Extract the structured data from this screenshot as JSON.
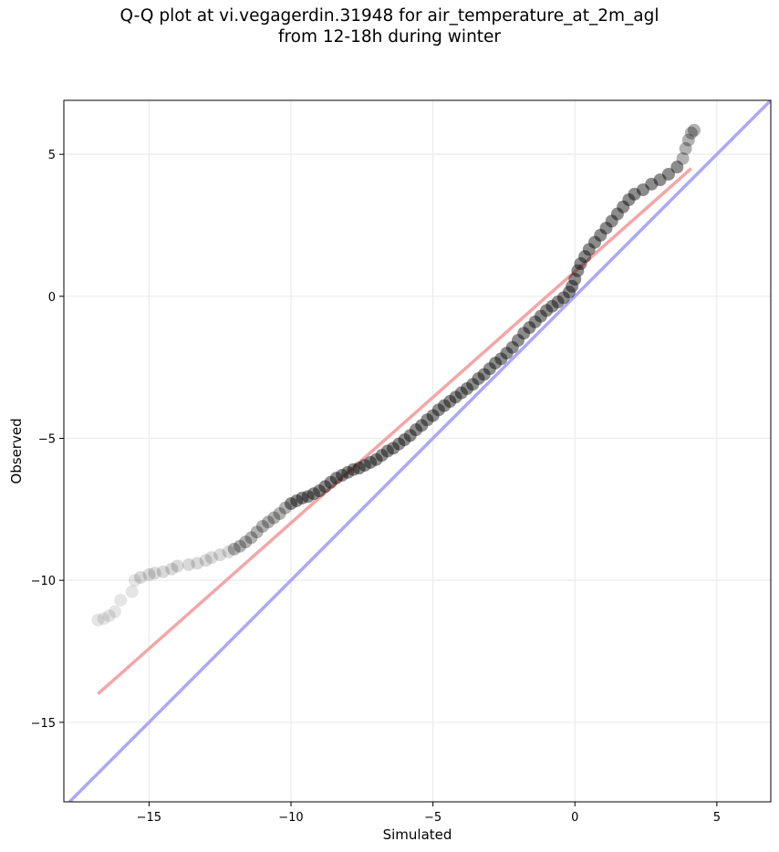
{
  "chart_data": {
    "type": "scatter",
    "title": "Q-Q plot at vi.vegagerdin.31948 for air_temperature_at_2m_agl",
    "subtitle": "from 12-18h during winter",
    "xlabel": "Simulated",
    "ylabel": "Observed",
    "xlim": [
      -18,
      6.9
    ],
    "ylim": [
      -17.8,
      6.9
    ],
    "xticks": [
      -15,
      -10,
      -5,
      0,
      5
    ],
    "yticks": [
      -15,
      -10,
      -5,
      0,
      5
    ],
    "xtick_labels": [
      "−15",
      "−10",
      "−5",
      "0",
      "5"
    ],
    "ytick_labels": [
      "−15",
      "−10",
      "−5",
      "0",
      "5"
    ],
    "grid": true,
    "colors": {
      "points": "#000000",
      "fit_line": "#f4a6a6",
      "identity_line": "#aaaaf4"
    },
    "series": [
      {
        "values": [
          {
            "x": -16.8,
            "y": -11.4
          },
          {
            "x": -16.6,
            "y": -11.35
          },
          {
            "x": -16.4,
            "y": -11.25
          },
          {
            "x": -16.2,
            "y": -11.1
          },
          {
            "x": -16.0,
            "y": -10.7
          },
          {
            "x": -15.6,
            "y": -10.4
          },
          {
            "x": -15.5,
            "y": -10.0
          },
          {
            "x": -15.3,
            "y": -9.9
          },
          {
            "x": -15.0,
            "y": -9.8
          },
          {
            "x": -14.8,
            "y": -9.75
          },
          {
            "x": -14.5,
            "y": -9.7
          },
          {
            "x": -14.2,
            "y": -9.6
          },
          {
            "x": -14.0,
            "y": -9.5
          },
          {
            "x": -13.6,
            "y": -9.45
          },
          {
            "x": -13.3,
            "y": -9.4
          },
          {
            "x": -13.0,
            "y": -9.3
          },
          {
            "x": -12.8,
            "y": -9.2
          },
          {
            "x": -12.5,
            "y": -9.1
          },
          {
            "x": -12.2,
            "y": -9.0
          },
          {
            "x": -12.0,
            "y": -8.9
          },
          {
            "x": -11.8,
            "y": -8.8
          },
          {
            "x": -11.6,
            "y": -8.65
          },
          {
            "x": -11.4,
            "y": -8.5
          },
          {
            "x": -11.2,
            "y": -8.3
          },
          {
            "x": -11.0,
            "y": -8.1
          },
          {
            "x": -10.8,
            "y": -7.95
          },
          {
            "x": -10.6,
            "y": -7.8
          },
          {
            "x": -10.4,
            "y": -7.65
          },
          {
            "x": -10.2,
            "y": -7.45
          },
          {
            "x": -10.0,
            "y": -7.3
          },
          {
            "x": -9.8,
            "y": -7.2
          },
          {
            "x": -9.6,
            "y": -7.1
          },
          {
            "x": -9.4,
            "y": -7.05
          },
          {
            "x": -9.2,
            "y": -6.95
          },
          {
            "x": -9.0,
            "y": -6.85
          },
          {
            "x": -8.8,
            "y": -6.7
          },
          {
            "x": -8.6,
            "y": -6.55
          },
          {
            "x": -8.4,
            "y": -6.4
          },
          {
            "x": -8.2,
            "y": -6.3
          },
          {
            "x": -8.0,
            "y": -6.2
          },
          {
            "x": -7.8,
            "y": -6.1
          },
          {
            "x": -7.6,
            "y": -6.05
          },
          {
            "x": -7.4,
            "y": -5.95
          },
          {
            "x": -7.2,
            "y": -5.85
          },
          {
            "x": -7.0,
            "y": -5.75
          },
          {
            "x": -6.8,
            "y": -5.6
          },
          {
            "x": -6.6,
            "y": -5.45
          },
          {
            "x": -6.4,
            "y": -5.35
          },
          {
            "x": -6.2,
            "y": -5.2
          },
          {
            "x": -6.0,
            "y": -5.05
          },
          {
            "x": -5.8,
            "y": -4.9
          },
          {
            "x": -5.6,
            "y": -4.7
          },
          {
            "x": -5.4,
            "y": -4.55
          },
          {
            "x": -5.2,
            "y": -4.35
          },
          {
            "x": -5.0,
            "y": -4.2
          },
          {
            "x": -4.8,
            "y": -4.0
          },
          {
            "x": -4.6,
            "y": -3.85
          },
          {
            "x": -4.4,
            "y": -3.7
          },
          {
            "x": -4.2,
            "y": -3.55
          },
          {
            "x": -4.0,
            "y": -3.4
          },
          {
            "x": -3.8,
            "y": -3.25
          },
          {
            "x": -3.6,
            "y": -3.1
          },
          {
            "x": -3.4,
            "y": -2.9
          },
          {
            "x": -3.2,
            "y": -2.75
          },
          {
            "x": -3.0,
            "y": -2.55
          },
          {
            "x": -2.8,
            "y": -2.35
          },
          {
            "x": -2.6,
            "y": -2.2
          },
          {
            "x": -2.4,
            "y": -2.0
          },
          {
            "x": -2.2,
            "y": -1.8
          },
          {
            "x": -2.0,
            "y": -1.55
          },
          {
            "x": -1.8,
            "y": -1.3
          },
          {
            "x": -1.6,
            "y": -1.1
          },
          {
            "x": -1.4,
            "y": -0.9
          },
          {
            "x": -1.2,
            "y": -0.7
          },
          {
            "x": -1.0,
            "y": -0.5
          },
          {
            "x": -0.8,
            "y": -0.35
          },
          {
            "x": -0.6,
            "y": -0.2
          },
          {
            "x": -0.4,
            "y": -0.05
          },
          {
            "x": -0.2,
            "y": 0.15
          },
          {
            "x": -0.1,
            "y": 0.35
          },
          {
            "x": 0.0,
            "y": 0.6
          },
          {
            "x": 0.1,
            "y": 0.9
          },
          {
            "x": 0.2,
            "y": 1.15
          },
          {
            "x": 0.35,
            "y": 1.4
          },
          {
            "x": 0.5,
            "y": 1.65
          },
          {
            "x": 0.7,
            "y": 1.9
          },
          {
            "x": 0.9,
            "y": 2.15
          },
          {
            "x": 1.1,
            "y": 2.4
          },
          {
            "x": 1.3,
            "y": 2.65
          },
          {
            "x": 1.5,
            "y": 2.9
          },
          {
            "x": 1.7,
            "y": 3.15
          },
          {
            "x": 1.9,
            "y": 3.4
          },
          {
            "x": 2.1,
            "y": 3.6
          },
          {
            "x": 2.4,
            "y": 3.75
          },
          {
            "x": 2.7,
            "y": 3.95
          },
          {
            "x": 3.0,
            "y": 4.1
          },
          {
            "x": 3.3,
            "y": 4.3
          },
          {
            "x": 3.6,
            "y": 4.55
          },
          {
            "x": 3.8,
            "y": 4.85
          },
          {
            "x": 3.9,
            "y": 5.2
          },
          {
            "x": 4.0,
            "y": 5.5
          },
          {
            "x": 4.1,
            "y": 5.75
          },
          {
            "x": 4.2,
            "y": 5.85
          }
        ]
      }
    ],
    "fit_line": {
      "x": [
        -16.8,
        4.1
      ],
      "y": [
        -14.0,
        4.5
      ]
    },
    "identity_line": {
      "x": [
        -18,
        6.9
      ],
      "y": [
        -18,
        6.9
      ]
    }
  }
}
